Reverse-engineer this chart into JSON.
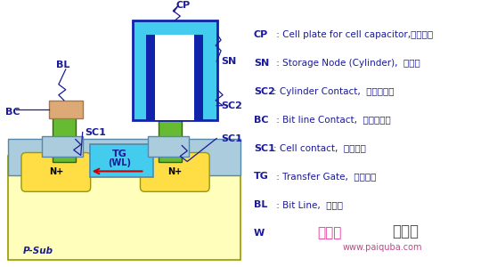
{
  "bg_color": "#FFFFFF",
  "psub_color": "#FFFFBB",
  "psub_border": "#999900",
  "n_plus_color": "#FFDD44",
  "n_plus_border": "#999900",
  "tg_color": "#44CCEE",
  "light_blue_color": "#AACCDD",
  "light_blue_border": "#5588AA",
  "green_color": "#66BB33",
  "green_border": "#336600",
  "tan_color": "#DDAA77",
  "tan_border": "#AA7744",
  "cyan_color": "#44CCEE",
  "dark_blue_color": "#1122AA",
  "label_color": "#1A1A9A",
  "arrow_color": "#CC0000",
  "legend_items": [
    {
      "key": "CP",
      "desc": " : Cell plate for cell capacitor,金属镀层"
    },
    {
      "key": "SN",
      "desc": " : Storage Node (Cylinder),  存储柱"
    },
    {
      "key": "SC2",
      "desc": ": Cylinder Contact,  存储柱触点"
    },
    {
      "key": "BC",
      "desc": " : Bit line Contact,  比特线触点"
    },
    {
      "key": "SC1",
      "desc": ": Cell contact,  单元触点"
    },
    {
      "key": "TG",
      "desc": " : Transfer Gate,  传递开关"
    },
    {
      "key": "BL",
      "desc": " : Bit Line,  比特线"
    },
    {
      "key": "W",
      "desc": ""
    }
  ],
  "psub_label": "P-Sub",
  "figsize": [
    5.58,
    3.0
  ],
  "dpi": 100
}
